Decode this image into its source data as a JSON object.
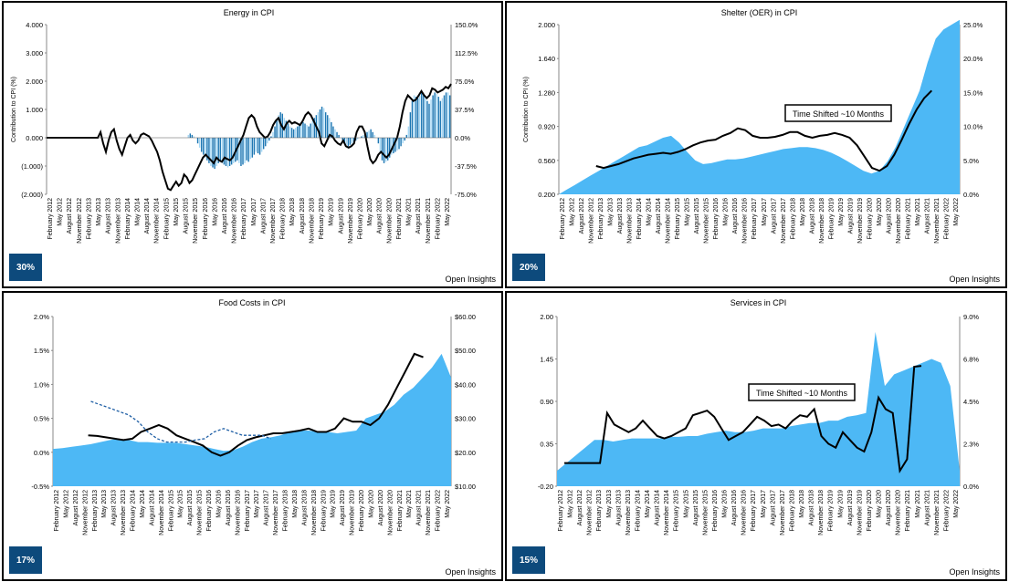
{
  "chart_data": [
    {
      "type": "bar",
      "title": "Energy in CPI",
      "ylabel": "Contribution to CPI (%)",
      "ylim": [
        -2,
        4
      ],
      "yticks": [
        "4.000",
        "3.000",
        "2.000",
        "1.000",
        "0.000",
        "(1.000)",
        "(2.000)"
      ],
      "y2ticks": [
        "150.0%",
        "112.5%",
        "75.0%",
        "37.5%",
        "0.0%",
        "-37.5%",
        "-75.0%"
      ],
      "y2lim": [
        -75,
        150
      ],
      "x_tick_labels": [
        "February 2012",
        "May 2012",
        "August 2012",
        "November 2012",
        "February 2013",
        "May 2013",
        "August 2013",
        "November 2013",
        "February 2014",
        "May 2014",
        "August 2014",
        "November 2014",
        "February 2015",
        "May 2015",
        "August 2015",
        "November 2015",
        "February 2016",
        "May 2016",
        "August 2016",
        "November 2016",
        "February 2017",
        "May 2017",
        "August 2017",
        "November 2017",
        "February 2018",
        "May 2018",
        "August 2018",
        "November 2018",
        "February 2019",
        "May 2019",
        "August 2019",
        "November 2019",
        "February 2020",
        "May 2020",
        "August 2020",
        "November 2020",
        "February 2021",
        "May 2021",
        "August 2021",
        "November 2021",
        "February 2022",
        "May 2022"
      ],
      "series": [
        {
          "kind": "bar",
          "color": "#1f78b4",
          "hollow_color": "#a6d8f5",
          "values": [
            0,
            0,
            0,
            0,
            0,
            0,
            0,
            0,
            0,
            0,
            0,
            0,
            0,
            0,
            0,
            0,
            0,
            0,
            0,
            0,
            0,
            0,
            0,
            0,
            0,
            0,
            0,
            0,
            0,
            0,
            0,
            0,
            0,
            0,
            0,
            0,
            0,
            0,
            0,
            0,
            0,
            0,
            0,
            0,
            0,
            0,
            0,
            0,
            0,
            0,
            0,
            0,
            0,
            0,
            0,
            0,
            0,
            0,
            0,
            0,
            0,
            0,
            0,
            0,
            0,
            0,
            0,
            0,
            0,
            0,
            0,
            0,
            0,
            0,
            0,
            0.1,
            0.15,
            0.1,
            0.05,
            0,
            -0.2,
            -0.35,
            -0.5,
            -0.6,
            -0.7,
            -0.8,
            -0.9,
            -1.0,
            -1.05,
            -1.1,
            -1.0,
            -0.9,
            -0.85,
            -0.9,
            -0.95,
            -1.0,
            -1.05,
            -1.0,
            -0.95,
            -0.9,
            -0.85,
            -0.8,
            -0.9,
            -1.0,
            -0.95,
            -0.9,
            -0.8,
            -0.85,
            -0.75,
            -0.7,
            -0.6,
            -0.5,
            -0.55,
            -0.6,
            -0.5,
            -0.4,
            -0.3,
            -0.2,
            -0.1,
            0.05,
            0.2,
            0.4,
            0.6,
            0.8,
            0.9,
            0.85,
            0.7,
            0.6,
            0.5,
            0.4,
            0.35,
            0.3,
            0.35,
            0.4,
            0.45,
            0.5,
            0.55,
            0.5,
            0.45,
            0.4,
            0.5,
            0.6,
            0.7,
            0.8,
            0.9,
            1.0,
            1.1,
            1.05,
            0.9,
            0.8,
            0.7,
            0.55,
            0.4,
            0.3,
            0.2,
            0.1,
            0.0,
            -0.1,
            -0.2,
            -0.25,
            -0.3,
            -0.25,
            -0.2,
            -0.15,
            -0.1,
            -0.05,
            0.0,
            0.05,
            0.1,
            0.15,
            0.2,
            0.25,
            0.3,
            0.2,
            0.1,
            0.0,
            -0.2,
            -0.5,
            -0.8,
            -0.9,
            -0.85,
            -0.8,
            -0.7,
            -0.6,
            -0.55,
            -0.5,
            -0.45,
            -0.4,
            -0.3,
            -0.2,
            -0.1,
            0.1,
            0.4,
            0.9,
            1.3,
            1.5,
            1.45,
            1.4,
            1.5,
            1.6,
            1.55,
            1.4,
            1.3,
            1.2,
            1.35,
            1.5,
            1.6,
            1.55,
            1.45,
            1.3,
            1.4,
            1.5,
            1.6,
            1.6,
            1.5
          ]
        },
        {
          "kind": "line",
          "color": "#000000",
          "values": [
            0,
            0,
            0,
            0,
            0,
            0,
            0,
            0,
            0,
            0,
            0,
            0,
            0,
            0,
            0,
            0,
            0,
            0,
            0,
            0,
            0.2,
            -0.2,
            -0.5,
            -0.1,
            0.2,
            0.3,
            -0.1,
            -0.4,
            -0.6,
            -0.3,
            0,
            0.1,
            -0.1,
            -0.2,
            -0.1,
            0.1,
            0.15,
            0.1,
            0.05,
            -0.1,
            -0.3,
            -0.5,
            -0.8,
            -1.2,
            -1.5,
            -1.8,
            -1.85,
            -1.7,
            -1.55,
            -1.7,
            -1.6,
            -1.3,
            -1.4,
            -1.6,
            -1.5,
            -1.3,
            -1.1,
            -0.9,
            -0.7,
            -0.6,
            -0.7,
            -0.8,
            -0.9,
            -0.7,
            -0.8,
            -0.85,
            -0.7,
            -0.75,
            -0.8,
            -0.7,
            -0.5,
            -0.3,
            -0.1,
            0.1,
            0.4,
            0.7,
            0.8,
            0.7,
            0.4,
            0.2,
            0.1,
            0.0,
            0.05,
            0.2,
            0.45,
            0.6,
            0.7,
            0.45,
            0.3,
            0.5,
            0.6,
            0.5,
            0.55,
            0.5,
            0.45,
            0.6,
            0.8,
            0.9,
            0.8,
            0.6,
            0.4,
            0.2,
            -0.2,
            -0.3,
            -0.1,
            0.1,
            0.05,
            -0.1,
            -0.2,
            -0.25,
            -0.1,
            -0.3,
            -0.35,
            -0.3,
            -0.2,
            0.2,
            0.4,
            0.4,
            0.2,
            -0.3,
            -0.75,
            -0.9,
            -0.8,
            -0.6,
            -0.5,
            -0.6,
            -0.7,
            -0.6,
            -0.4,
            -0.2,
            0,
            0.4,
            0.9,
            1.3,
            1.5,
            1.4,
            1.3,
            1.35,
            1.5,
            1.65,
            1.5,
            1.4,
            1.5,
            1.75,
            1.7,
            1.6,
            1.65,
            1.7,
            1.8,
            1.75,
            1.9
          ]
        }
      ],
      "badge": "30%"
    },
    {
      "type": "area",
      "title": "Shelter (OER) in CPI",
      "ylabel": "Contribution to CPI (%)",
      "ylim": [
        0.2,
        2.0
      ],
      "yticks": [
        "2.000",
        "1.640",
        "1.280",
        "0.920",
        "0.560",
        "0.200"
      ],
      "y2ticks": [
        "25.0%",
        "20.0%",
        "15.0%",
        "10.0%",
        "5.0%",
        "0.0%"
      ],
      "y2lim": [
        0,
        25
      ],
      "x_tick_labels": [
        "February 2012",
        "May 2012",
        "August 2012",
        "November 2012",
        "February 2013",
        "May 2013",
        "August 2013",
        "November 2013",
        "February 2014",
        "May 2014",
        "August 2014",
        "November 2014",
        "February 2015",
        "May 2015",
        "August 2015",
        "November 2015",
        "February 2016",
        "May 2016",
        "August 2016",
        "November 2016",
        "February 2017",
        "May 2017",
        "August 2017",
        "November 2017",
        "February 2018",
        "May 2018",
        "August 2018",
        "November 2018",
        "February 2019",
        "May 2019",
        "August 2019",
        "November 2019",
        "February 2020",
        "May 2020",
        "August 2020",
        "November 2020",
        "February 2021",
        "May 2021",
        "August 2021",
        "November 2021",
        "February 2022",
        "May 2022"
      ],
      "series": [
        {
          "kind": "area",
          "color": "#4db8f5",
          "values": [
            0.2,
            0.25,
            0.3,
            0.35,
            0.4,
            0.45,
            0.5,
            0.55,
            0.6,
            0.65,
            0.7,
            0.72,
            0.76,
            0.8,
            0.82,
            0.75,
            0.65,
            0.56,
            0.52,
            0.53,
            0.55,
            0.57,
            0.57,
            0.58,
            0.6,
            0.62,
            0.64,
            0.66,
            0.68,
            0.69,
            0.7,
            0.7,
            0.69,
            0.67,
            0.64,
            0.6,
            0.55,
            0.5,
            0.45,
            0.42,
            0.45,
            0.55,
            0.7,
            0.9,
            1.1,
            1.3,
            1.6,
            1.85,
            1.95,
            2.0,
            2.05
          ]
        },
        {
          "kind": "line",
          "color": "#000000",
          "start_index": 5,
          "values": [
            0.5,
            0.48,
            0.5,
            0.52,
            0.55,
            0.58,
            0.6,
            0.62,
            0.63,
            0.64,
            0.63,
            0.65,
            0.68,
            0.72,
            0.75,
            0.77,
            0.78,
            0.82,
            0.85,
            0.9,
            0.88,
            0.82,
            0.8,
            0.8,
            0.81,
            0.83,
            0.86,
            0.86,
            0.82,
            0.8,
            0.82,
            0.83,
            0.85,
            0.83,
            0.8,
            0.72,
            0.6,
            0.48,
            0.45,
            0.5,
            0.62,
            0.78,
            0.95,
            1.1,
            1.22,
            1.3
          ]
        }
      ],
      "annotation": "Time Shifted ~10 Months",
      "badge": "20%"
    },
    {
      "type": "area",
      "title": "Food Costs in CPI",
      "ylabel": "",
      "ylim": [
        -0.5,
        2.0
      ],
      "yticks": [
        "2.0%",
        "1.5%",
        "1.0%",
        "0.5%",
        "0.0%",
        "-0.5%"
      ],
      "y2ticks": [
        "$60.00",
        "$50.00",
        "$40.00",
        "$30.00",
        "$20.00",
        "$10.00"
      ],
      "y2lim": [
        10,
        60
      ],
      "x_tick_labels": [
        "February 2012",
        "May 2012",
        "August 2012",
        "November 2012",
        "February 2013",
        "May 2013",
        "August 2013",
        "November 2013",
        "February 2014",
        "May 2014",
        "August 2014",
        "November 2014",
        "February 2015",
        "May 2015",
        "August 2015",
        "November 2015",
        "February 2016",
        "May 2016",
        "August 2016",
        "November 2016",
        "February 2017",
        "May 2017",
        "August 2017",
        "November 2017",
        "February 2018",
        "May 2018",
        "August 2018",
        "November 2018",
        "February 2019",
        "May 2019",
        "August 2019",
        "November 2019",
        "February 2020",
        "May 2020",
        "August 2020",
        "November 2020",
        "February 2021",
        "May 2021",
        "August 2021",
        "November 2021",
        "February 2022",
        "May 2022"
      ],
      "series": [
        {
          "kind": "area",
          "color": "#4db8f5",
          "values": [
            0.05,
            0.06,
            0.08,
            0.1,
            0.12,
            0.15,
            0.18,
            0.2,
            0.18,
            0.15,
            0.15,
            0.14,
            0.14,
            0.14,
            0.12,
            0.1,
            0.08,
            0.05,
            0.02,
            0.03,
            0.08,
            0.15,
            0.2,
            0.22,
            0.25,
            0.3,
            0.32,
            0.32,
            0.3,
            0.3,
            0.28,
            0.3,
            0.32,
            0.5,
            0.55,
            0.6,
            0.7,
            0.85,
            0.95,
            1.1,
            1.25,
            1.45,
            1.1
          ]
        },
        {
          "kind": "line",
          "color": "#000000",
          "start_index": 4,
          "values": [
            0.25,
            0.24,
            0.22,
            0.2,
            0.18,
            0.2,
            0.3,
            0.35,
            0.4,
            0.35,
            0.25,
            0.2,
            0.15,
            0.1,
            0.0,
            -0.05,
            0.0,
            0.1,
            0.18,
            0.22,
            0.25,
            0.28,
            0.28,
            0.3,
            0.32,
            0.35,
            0.3,
            0.3,
            0.35,
            0.5,
            0.45,
            0.45,
            0.4,
            0.5,
            0.7,
            0.95,
            1.2,
            1.45,
            1.4
          ]
        },
        {
          "kind": "dashed",
          "color": "#1f5fa5",
          "start_index": 4,
          "values": [
            0.75,
            0.7,
            0.65,
            0.6,
            0.55,
            0.45,
            0.3,
            0.2,
            0.15,
            0.15,
            0.15,
            0.18,
            0.2,
            0.3,
            0.35,
            0.3,
            0.25,
            0.25,
            0.25,
            0.2
          ]
        }
      ],
      "badge": "17%"
    },
    {
      "type": "area",
      "title": "Services in CPI",
      "ylabel": "",
      "ylim": [
        -0.2,
        2.0
      ],
      "yticks": [
        "2.00",
        "1.45",
        "0.90",
        "0.35",
        "-0.20"
      ],
      "y2ticks": [
        "9.0%",
        "6.8%",
        "4.5%",
        "2.3%",
        "0.0%"
      ],
      "y2lim": [
        0,
        9
      ],
      "x_tick_labels": [
        "February 2012",
        "May 2012",
        "August 2012",
        "November 2012",
        "February 2013",
        "May 2013",
        "August 2013",
        "November 2013",
        "February 2014",
        "May 2014",
        "August 2014",
        "November 2014",
        "February 2015",
        "May 2015",
        "August 2015",
        "November 2015",
        "February 2016",
        "May 2016",
        "August 2016",
        "November 2016",
        "February 2017",
        "May 2017",
        "August 2017",
        "November 2017",
        "February 2018",
        "May 2018",
        "August 2018",
        "November 2018",
        "February 2019",
        "May 2019",
        "August 2019",
        "November 2019",
        "February 2020",
        "May 2020",
        "August 2020",
        "November 2020",
        "February 2021",
        "May 2021",
        "August 2021",
        "November 2021",
        "February 2022",
        "May 2022"
      ],
      "series": [
        {
          "kind": "area",
          "color": "#4db8f5",
          "values": [
            0.0,
            0.1,
            0.2,
            0.3,
            0.4,
            0.4,
            0.38,
            0.4,
            0.42,
            0.42,
            0.42,
            0.42,
            0.44,
            0.44,
            0.45,
            0.45,
            0.48,
            0.5,
            0.52,
            0.5,
            0.5,
            0.52,
            0.55,
            0.55,
            0.55,
            0.58,
            0.6,
            0.62,
            0.62,
            0.65,
            0.65,
            0.7,
            0.72,
            0.75,
            1.8,
            1.1,
            1.25,
            1.3,
            1.35,
            1.4,
            1.45,
            1.4,
            1.1,
            0.0
          ]
        },
        {
          "kind": "line",
          "color": "#000000",
          "values": [
            0.1,
            0.1,
            0.1,
            0.1,
            0.1,
            0.1,
            0.75,
            0.6,
            0.55,
            0.5,
            0.55,
            0.65,
            0.55,
            0.45,
            0.42,
            0.45,
            0.5,
            0.55,
            0.72,
            0.75,
            0.78,
            0.7,
            0.55,
            0.4,
            0.45,
            0.5,
            0.6,
            0.7,
            0.65,
            0.58,
            0.6,
            0.55,
            0.65,
            0.72,
            0.7,
            0.8,
            0.45,
            0.35,
            0.3,
            0.5,
            0.4,
            0.3,
            0.25,
            0.5,
            0.95,
            0.8,
            0.75,
            0.0,
            0.15,
            1.35,
            1.36
          ]
        }
      ],
      "annotation": "Time Shifted ~10 Months",
      "badge": "15%"
    }
  ],
  "brand": "Open Insights"
}
